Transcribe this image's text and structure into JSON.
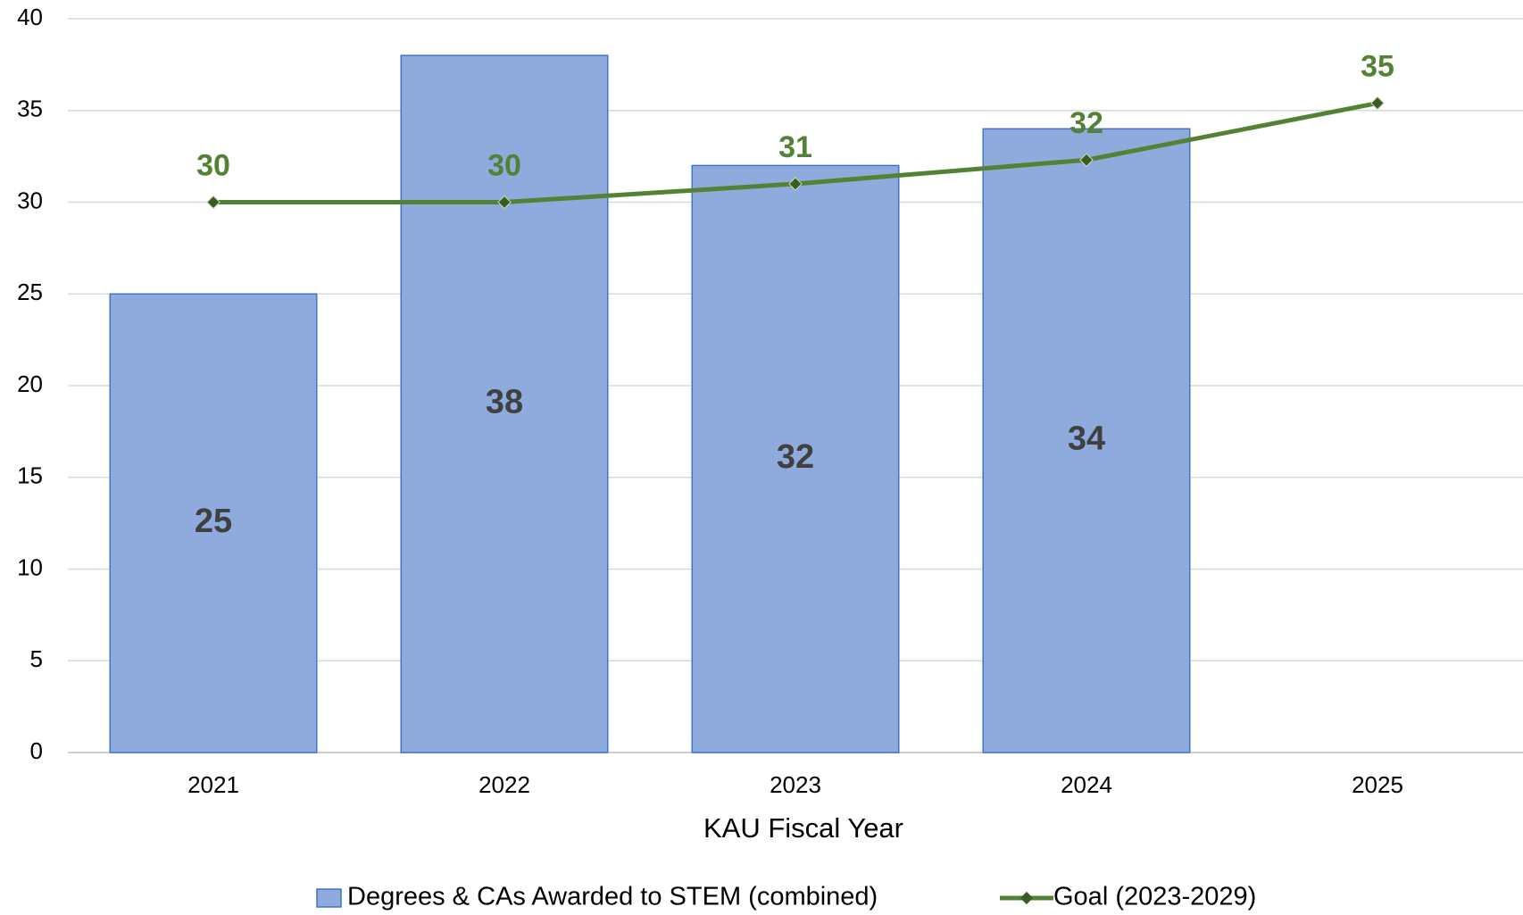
{
  "chart_data": {
    "type": "bar",
    "x_label": "KAU Fiscal Year",
    "categories": [
      "2021",
      "2022",
      "2023",
      "2024",
      "2025"
    ],
    "series": [
      {
        "name": "Degrees & CAs Awarded to STEM (combined)",
        "type": "bar",
        "color": "#8faadc",
        "values": [
          25,
          38,
          32,
          34,
          null
        ]
      },
      {
        "name": "Goal (2023-2029)",
        "type": "line",
        "color": "#548235",
        "values": [
          30,
          30,
          31,
          32.3,
          35.4
        ],
        "value_labels": [
          "30",
          "30",
          "31",
          "32",
          "35"
        ]
      }
    ],
    "ylim": [
      0,
      40
    ],
    "yticks": [
      0,
      5,
      10,
      15,
      20,
      25,
      30,
      35,
      40
    ],
    "grid": true,
    "legend": "bottom"
  }
}
